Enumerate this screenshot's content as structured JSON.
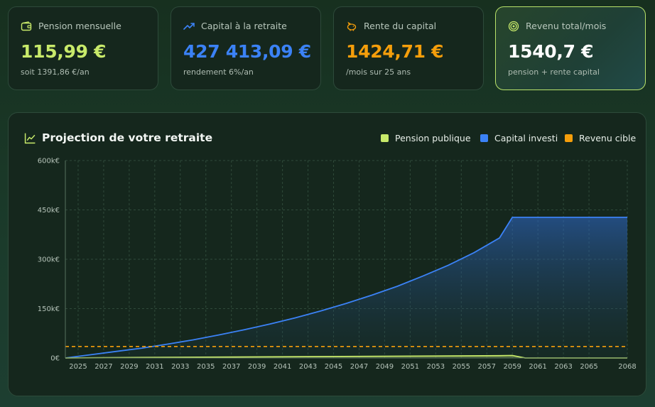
{
  "cards": [
    {
      "label": "Pension mensuelle",
      "value": "115,99 €",
      "sub": "soit 1391,86 €/an",
      "color": "#c8ea6a",
      "icon": "wallet-icon"
    },
    {
      "label": "Capital à la retraite",
      "value": "427 413,09 €",
      "sub": "rendement 6%/an",
      "color": "#3b82f6",
      "icon": "trending-up-icon"
    },
    {
      "label": "Rente du capital",
      "value": "1424,71 €",
      "sub": "/mois sur 25 ans",
      "color": "#f59e0b",
      "icon": "piggy-bank-icon"
    },
    {
      "label": "Revenu total/mois",
      "value": "1540,7 €",
      "sub": "pension + rente capital",
      "color": "#ffffff",
      "icon": "target-icon"
    }
  ],
  "panel": {
    "title": "Projection de votre retraite",
    "icon": "line-chart-icon"
  },
  "legend": [
    {
      "label": "Pension publique",
      "color": "#c8ea6a"
    },
    {
      "label": "Capital investi",
      "color": "#3b82f6"
    },
    {
      "label": "Revenu cible",
      "color": "#f59e0b"
    }
  ],
  "chart_data": {
    "type": "area",
    "x_ticks": [
      "2025",
      "2027",
      "2029",
      "2031",
      "2033",
      "2035",
      "2037",
      "2039",
      "2041",
      "2043",
      "2045",
      "2047",
      "2049",
      "2051",
      "2053",
      "2055",
      "2057",
      "2059",
      "2061",
      "2063",
      "2065",
      "2068"
    ],
    "y_ticks": [
      "0€",
      "150k€",
      "300k€",
      "450k€",
      "600k€"
    ],
    "ylim": [
      0,
      600000
    ],
    "xlim": [
      2024,
      2068
    ],
    "grid": true,
    "legend_position": "top-right",
    "series": [
      {
        "name": "Capital investi",
        "color": "#3b82f6",
        "x": [
          2024,
          2026,
          2028,
          2030,
          2032,
          2034,
          2036,
          2038,
          2040,
          2042,
          2044,
          2046,
          2048,
          2050,
          2052,
          2054,
          2056,
          2058,
          2059,
          2068
        ],
        "y": [
          0,
          10000,
          20000,
          30000,
          42000,
          55000,
          70000,
          86000,
          103000,
          122000,
          143000,
          166000,
          191000,
          218000,
          249000,
          282000,
          320000,
          365000,
          427413,
          427413
        ]
      },
      {
        "name": "Pension publique",
        "color": "#c8ea6a",
        "x": [
          2024,
          2030,
          2040,
          2050,
          2058,
          2059,
          2060,
          2068
        ],
        "y": [
          0,
          1500,
          3500,
          5500,
          7000,
          7500,
          0,
          0
        ]
      },
      {
        "name": "Revenu cible",
        "color": "#f59e0b",
        "x": [
          2024,
          2068
        ],
        "y": [
          35000,
          35000
        ]
      }
    ]
  }
}
